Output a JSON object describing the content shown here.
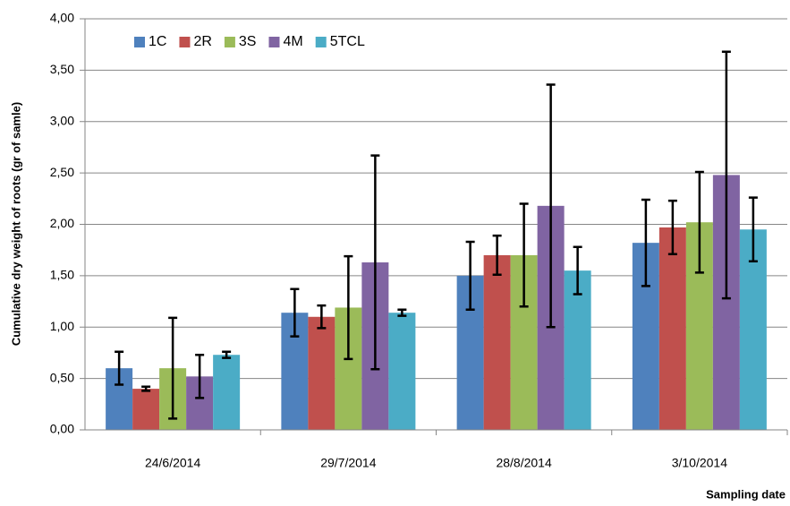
{
  "chart_data": {
    "type": "bar",
    "x_label": "Sampling date",
    "y_label": "Cumulative dry weight of roots (gr of samle)",
    "categories": [
      "24/6/2014",
      "29/7/2014",
      "28/8/2014",
      "3/10/2014"
    ],
    "series": [
      {
        "name": "1C",
        "color": "#4f81bd",
        "values": [
          0.6,
          1.14,
          1.5,
          1.82
        ],
        "errors": [
          0.16,
          0.23,
          0.33,
          0.42
        ]
      },
      {
        "name": "2R",
        "color": "#c0504d",
        "values": [
          0.4,
          1.1,
          1.7,
          1.97
        ],
        "errors": [
          0.02,
          0.11,
          0.19,
          0.26
        ]
      },
      {
        "name": "3S",
        "color": "#9bbb59",
        "values": [
          0.6,
          1.19,
          1.7,
          2.02
        ],
        "errors": [
          0.49,
          0.5,
          0.5,
          0.49
        ]
      },
      {
        "name": "4M",
        "color": "#8064a2",
        "values": [
          0.52,
          1.63,
          2.18,
          2.48
        ],
        "errors": [
          0.21,
          1.04,
          1.18,
          1.2
        ]
      },
      {
        "name": "5TCL",
        "color": "#4bacc6",
        "values": [
          0.73,
          1.14,
          1.55,
          1.95
        ],
        "errors": [
          0.03,
          0.03,
          0.23,
          0.31
        ]
      }
    ],
    "ylim": [
      0,
      4
    ],
    "yticks": [
      {
        "value": 0,
        "label": "0,00"
      },
      {
        "value": 0.5,
        "label": "0,50"
      },
      {
        "value": 1,
        "label": "1,00"
      },
      {
        "value": 1.5,
        "label": "1,50"
      },
      {
        "value": 2,
        "label": "2,00"
      },
      {
        "value": 2.5,
        "label": "2,50"
      },
      {
        "value": 3,
        "label": "3,00"
      },
      {
        "value": 3.5,
        "label": "3,50"
      },
      {
        "value": 4,
        "label": "4,00"
      }
    ],
    "grid": true,
    "legend": "top-left"
  }
}
